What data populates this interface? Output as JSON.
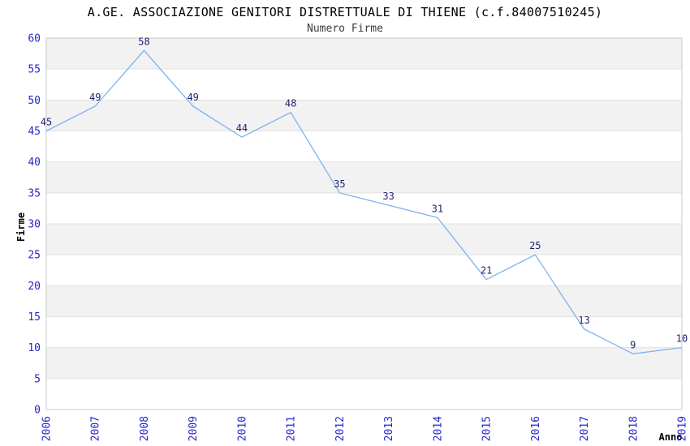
{
  "chart_data": {
    "type": "line",
    "title": "A.GE. ASSOCIAZIONE GENITORI DISTRETTUALE DI THIENE (c.f.84007510245)",
    "subtitle": "Numero Firme",
    "xlabel": "Anno",
    "ylabel": "Firme",
    "categories": [
      "2006",
      "2007",
      "2008",
      "2009",
      "2010",
      "2011",
      "2012",
      "2013",
      "2014",
      "2015",
      "2016",
      "2017",
      "2018",
      "2019"
    ],
    "values": [
      45,
      49,
      58,
      49,
      44,
      48,
      35,
      33,
      31,
      21,
      25,
      13,
      9,
      10
    ],
    "ylim": [
      0,
      60
    ],
    "ytick_step": 5,
    "grid": "horizontal-alternating-bands",
    "legend": "none",
    "data_labels": "shown-above-points",
    "x_tick_rotation": -90,
    "colors": {
      "line": "#7fb2ee",
      "tick_label": "#2626cc",
      "data_label": "#1f1f6e",
      "band": "#f2f2f2",
      "grid": "#e3e3e3",
      "frame": "#c8c8c8",
      "title": "#000000",
      "subtitle": "#3a3a3a"
    }
  }
}
